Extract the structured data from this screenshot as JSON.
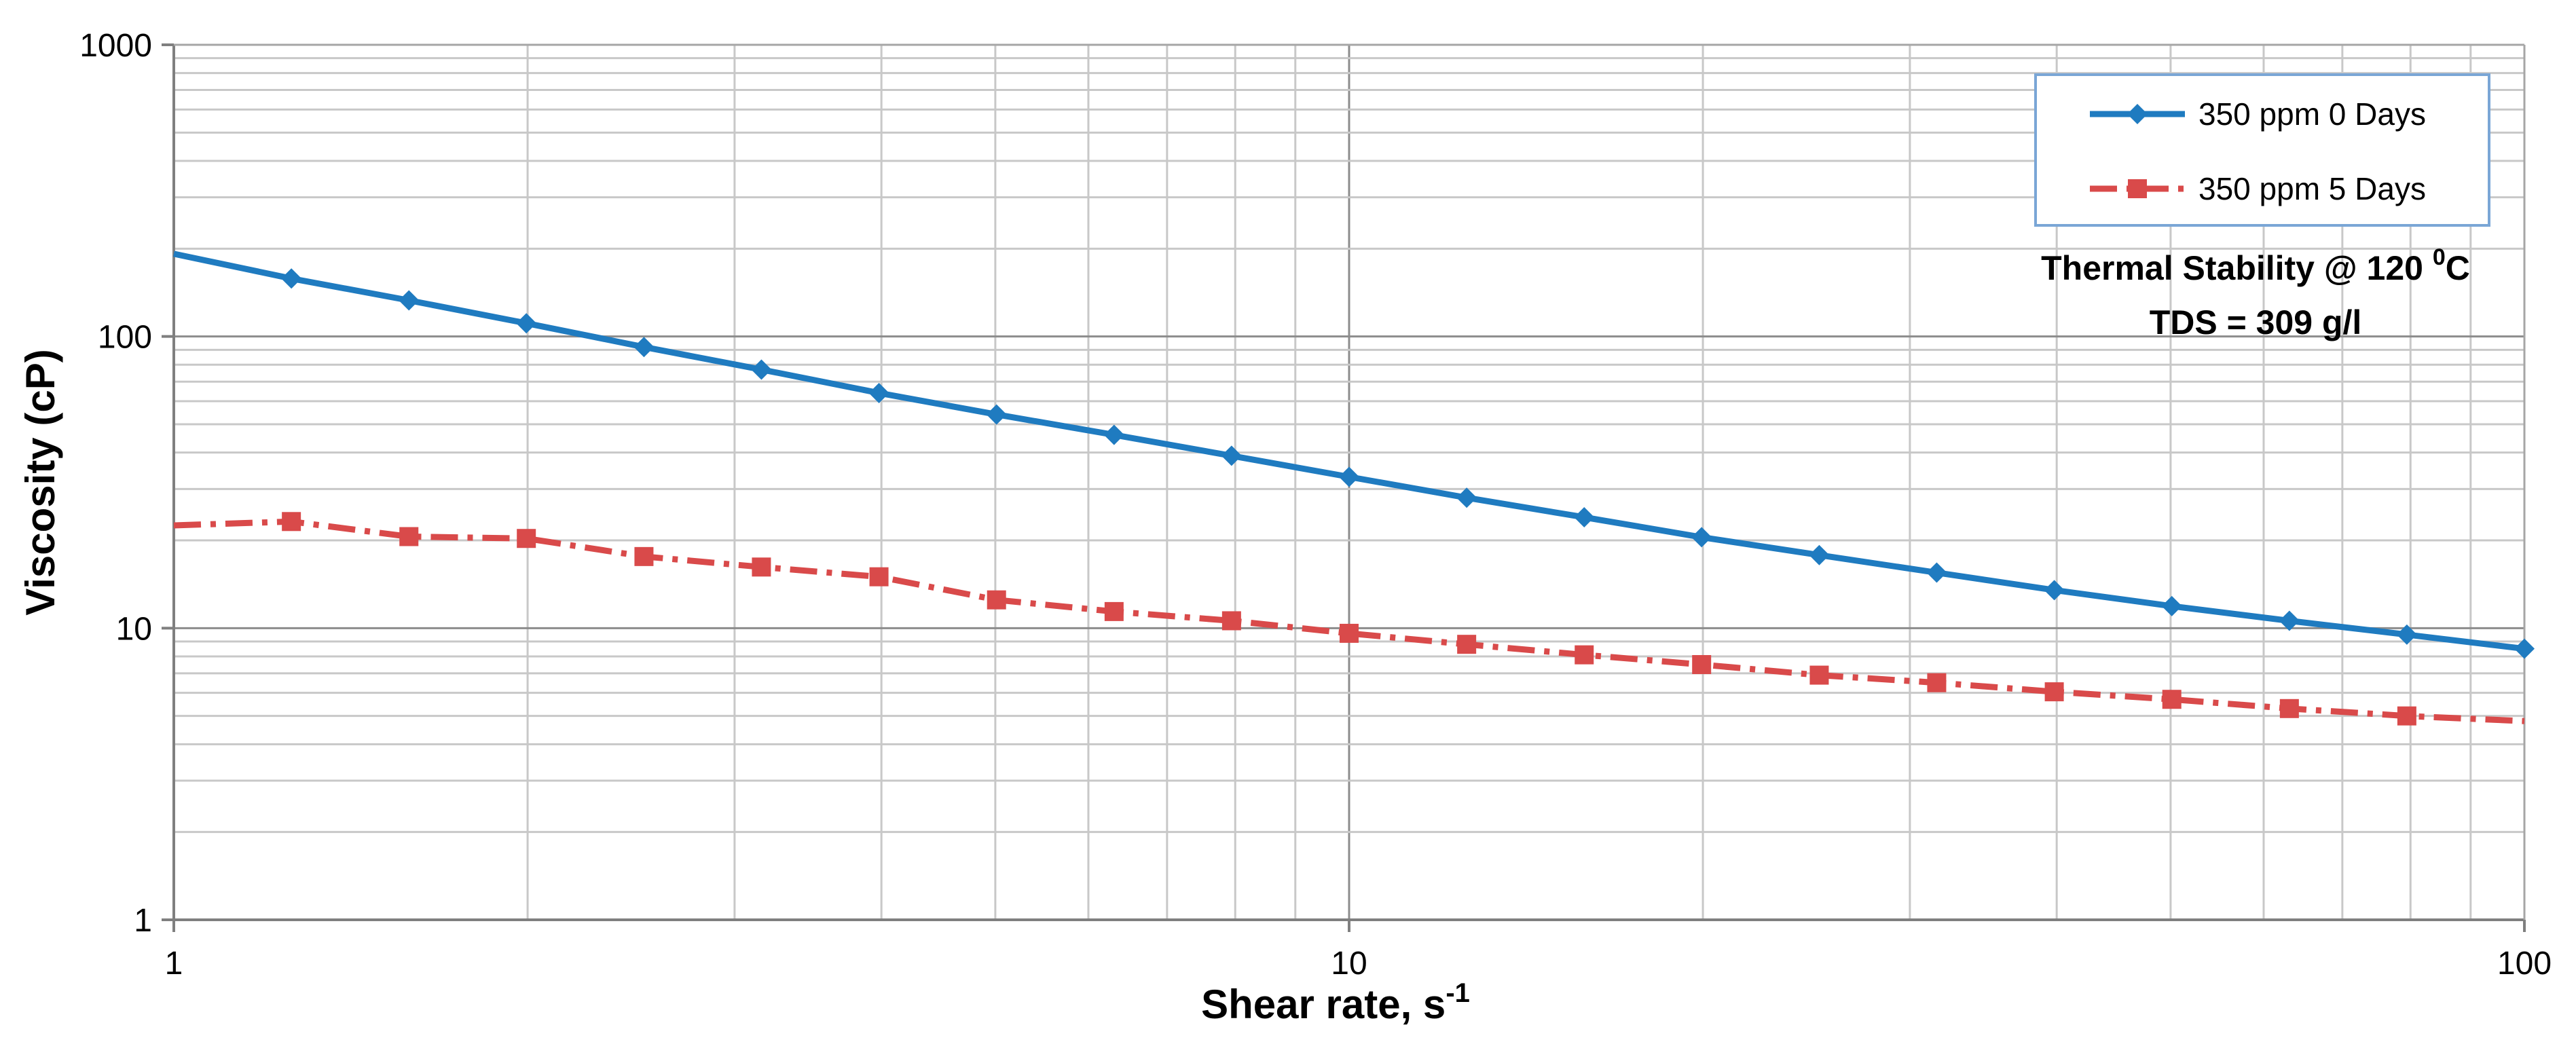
{
  "chart_data": {
    "type": "line",
    "title": "",
    "xlabel": "Shear rate, s",
    "xlabel_sup": "-1",
    "ylabel": "Viscosity (cP)",
    "xscale": "log",
    "yscale": "log",
    "xlim": [
      1,
      100
    ],
    "ylim": [
      1,
      1000
    ],
    "x_ticks": [
      {
        "value": 1,
        "label": "1"
      },
      {
        "value": 10,
        "label": "10"
      },
      {
        "value": 100,
        "label": "100"
      }
    ],
    "y_ticks": [
      {
        "value": 1,
        "label": "1"
      },
      {
        "value": 10,
        "label": "10"
      },
      {
        "value": 100,
        "label": "100"
      },
      {
        "value": 1000,
        "label": "1000"
      }
    ],
    "grid": true,
    "legend_position": "top-right",
    "annotation": {
      "line1_prefix": "Thermal Stability @ 120 ",
      "line1_sup": "0",
      "line1_suffix": "C",
      "line2": "TDS = 309 g/l"
    },
    "series": [
      {
        "name": "350 ppm 0 Days",
        "color": "#1f7bc0",
        "line_style": "solid",
        "marker": "diamond",
        "points": [
          [
            1.0,
            192,
            false
          ],
          [
            1.259,
            158,
            true
          ],
          [
            1.585,
            133,
            true
          ],
          [
            1.995,
            111,
            true
          ],
          [
            2.512,
            92,
            true
          ],
          [
            3.162,
            77,
            true
          ],
          [
            3.981,
            64,
            true
          ],
          [
            5.012,
            54,
            true
          ],
          [
            6.31,
            46,
            true
          ],
          [
            7.943,
            39,
            true
          ],
          [
            10.0,
            33,
            true
          ],
          [
            12.59,
            28,
            true
          ],
          [
            15.85,
            24,
            true
          ],
          [
            19.95,
            20.5,
            true
          ],
          [
            25.12,
            17.8,
            true
          ],
          [
            31.62,
            15.5,
            true
          ],
          [
            39.81,
            13.5,
            true
          ],
          [
            50.12,
            11.9,
            true
          ],
          [
            63.1,
            10.6,
            true
          ],
          [
            79.43,
            9.5,
            true
          ],
          [
            100.0,
            8.5,
            true
          ]
        ]
      },
      {
        "name": "350 ppm 5 Days",
        "color": "#d94a4a",
        "line_style": "dashdot",
        "marker": "square",
        "points": [
          [
            1.0,
            22.5,
            false
          ],
          [
            1.259,
            23.2,
            true
          ],
          [
            1.585,
            20.6,
            true
          ],
          [
            1.995,
            20.3,
            true
          ],
          [
            2.512,
            17.6,
            true
          ],
          [
            3.162,
            16.2,
            true
          ],
          [
            3.981,
            15.0,
            true
          ],
          [
            5.012,
            12.5,
            true
          ],
          [
            6.31,
            11.4,
            true
          ],
          [
            7.943,
            10.6,
            true
          ],
          [
            10.0,
            9.6,
            true
          ],
          [
            12.59,
            8.8,
            true
          ],
          [
            15.85,
            8.1,
            true
          ],
          [
            19.95,
            7.5,
            true
          ],
          [
            25.12,
            6.9,
            true
          ],
          [
            31.62,
            6.5,
            true
          ],
          [
            39.81,
            6.05,
            true
          ],
          [
            50.12,
            5.7,
            true
          ],
          [
            63.1,
            5.3,
            true
          ],
          [
            79.43,
            5.0,
            true
          ],
          [
            100.0,
            4.8,
            false
          ]
        ]
      }
    ]
  }
}
